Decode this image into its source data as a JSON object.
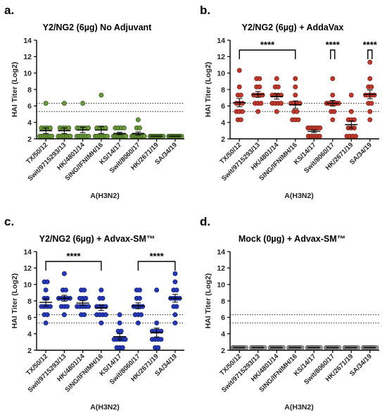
{
  "chart_data": [
    {
      "type": "scatter",
      "panel": "a.",
      "title": "Y2/NG2 (6µg) No Adjuvant",
      "xlabel": "A(H3N2)",
      "ylabel": "HAI Titer (Log2)",
      "ylim": [
        2,
        14
      ],
      "yticks": [
        2,
        4,
        6,
        8,
        10,
        12,
        14
      ],
      "reference_lines": [
        5.32,
        6.32
      ],
      "dot_color": "#6b9a3a",
      "dot_edge": "#2f4a17",
      "categories": [
        "TX/50/12",
        "Swit/9715293/13",
        "HK/4801/14",
        "SING/IFNIMH/16",
        "KS/14/17",
        "Swit/8060/17",
        "HK/2671/19",
        "SA/34/19"
      ],
      "series": [
        {
          "values": [
            [
              2.32,
              2.32,
              2.32,
              2.32,
              2.32,
              2.32,
              2.32,
              3.32,
              3.32,
              3.32,
              3.32,
              6.32
            ],
            [
              2.32,
              2.32,
              2.32,
              2.32,
              2.32,
              2.32,
              2.32,
              3.32,
              3.32,
              3.32,
              3.32,
              6.32
            ],
            [
              2.32,
              2.32,
              2.32,
              2.32,
              2.32,
              2.32,
              3.32,
              3.32,
              3.32,
              3.32,
              3.32,
              6.32
            ],
            [
              2.32,
              2.32,
              2.32,
              2.32,
              2.32,
              2.32,
              2.32,
              3.32,
              3.32,
              3.32,
              3.32,
              7.32
            ],
            [
              2.32,
              2.32,
              2.32,
              2.32,
              2.32,
              2.32,
              2.32,
              2.32,
              3.32,
              3.32,
              3.32,
              3.32
            ],
            [
              2.32,
              2.32,
              2.32,
              2.32,
              2.32,
              2.32,
              2.32,
              2.32,
              2.32,
              3.32,
              3.32,
              4.32
            ],
            [
              2.32,
              2.32,
              2.32,
              2.32,
              2.32,
              2.32,
              2.32,
              2.32,
              2.32,
              2.32,
              2.32,
              2.32
            ],
            [
              2.32,
              2.32,
              2.32,
              2.32,
              2.32,
              2.32,
              2.32,
              2.32,
              2.32,
              2.32,
              2.32,
              2.32
            ]
          ]
        }
      ],
      "significance": []
    },
    {
      "type": "scatter",
      "panel": "b.",
      "title": "Y2/NG2 (6µg) + AddaVax",
      "xlabel": "A(H3N2)",
      "ylabel": "HAI Titer (Log2)",
      "ylim": [
        2,
        14
      ],
      "yticks": [
        2,
        4,
        6,
        8,
        10,
        12,
        14
      ],
      "reference_lines": [
        5.32,
        6.32
      ],
      "dot_color": "#c0392b",
      "dot_edge": "#6e1a12",
      "categories": [
        "TX/50/12",
        "Swit/9715293/13",
        "HK/4801/14",
        "SING/IFNIMH/16",
        "KS/14/17",
        "Swit/8060/17",
        "HK/2671/19",
        "SA/34/19"
      ],
      "series": [
        {
          "values": [
            [
              4.32,
              4.32,
              5.32,
              5.32,
              5.32,
              6.32,
              6.32,
              6.32,
              7.32,
              7.32,
              8.32,
              10.32
            ],
            [
              5.32,
              6.32,
              6.32,
              6.32,
              7.32,
              7.32,
              7.32,
              7.32,
              8.32,
              8.32,
              9.32,
              9.32
            ],
            [
              5.32,
              6.32,
              6.32,
              6.32,
              6.32,
              7.32,
              7.32,
              7.32,
              7.32,
              8.32,
              8.32,
              9.32
            ],
            [
              4.32,
              4.32,
              4.32,
              5.32,
              5.32,
              6.32,
              6.32,
              6.32,
              6.32,
              7.32,
              8.32,
              9.32
            ],
            [
              2.32,
              2.32,
              2.32,
              2.32,
              2.32,
              3.32,
              3.32,
              3.32,
              3.32,
              3.32,
              3.32,
              3.32
            ],
            [
              4.32,
              5.32,
              5.32,
              6.32,
              6.32,
              6.32,
              6.32,
              6.32,
              6.32,
              6.32,
              7.32,
              9.32
            ],
            [
              2.32,
              2.32,
              2.32,
              2.32,
              3.32,
              3.32,
              3.32,
              4.32,
              4.32,
              4.32,
              5.32,
              7.32
            ],
            [
              4.32,
              5.32,
              6.32,
              6.32,
              7.32,
              7.32,
              7.32,
              7.32,
              8.32,
              8.32,
              9.32,
              11.32
            ]
          ]
        }
      ],
      "significance": [
        {
          "from": 0,
          "to": 3,
          "y": 12.8,
          "label": "****"
        },
        {
          "from": 5,
          "to": 5,
          "y": 12.8,
          "label": "****"
        },
        {
          "from": 7,
          "to": 7,
          "y": 12.8,
          "label": "****"
        }
      ]
    },
    {
      "type": "scatter",
      "panel": "c.",
      "title": "Y2/NG2 (6µg) + Advax-SM™",
      "xlabel": "A(H3N2)",
      "ylabel": "HAI Titer (Log2)",
      "ylim": [
        2,
        14
      ],
      "yticks": [
        2,
        4,
        6,
        8,
        10,
        12,
        14
      ],
      "reference_lines": [
        5.32,
        6.32
      ],
      "dot_color": "#2438b8",
      "dot_edge": "#101c66",
      "categories": [
        "TX/50/12",
        "Swit/9715293/13",
        "HK/4801/14",
        "SING/IFNIMH/16",
        "KS/14/17",
        "Swit/8060/17",
        "HK/2671/19",
        "SA/34/19"
      ],
      "series": [
        {
          "values": [
            [
              5.32,
              6.32,
              6.32,
              7.32,
              7.32,
              7.32,
              7.32,
              8.32,
              8.32,
              9.32,
              10.32,
              10.32
            ],
            [
              6.32,
              7.32,
              7.32,
              7.32,
              8.32,
              8.32,
              8.32,
              8.32,
              8.32,
              9.32,
              9.32,
              11.32
            ],
            [
              6.32,
              6.32,
              7.32,
              7.32,
              7.32,
              7.32,
              7.32,
              8.32,
              8.32,
              8.32,
              9.32,
              9.32
            ],
            [
              5.32,
              6.32,
              6.32,
              6.32,
              6.32,
              7.32,
              7.32,
              7.32,
              7.32,
              8.32,
              8.32,
              9.32
            ],
            [
              2.32,
              2.32,
              2.32,
              3.32,
              3.32,
              3.32,
              3.32,
              3.32,
              4.32,
              4.32,
              5.32,
              6.32
            ],
            [
              5.32,
              6.32,
              6.32,
              6.32,
              7.32,
              7.32,
              7.32,
              7.32,
              8.32,
              8.32,
              9.32,
              9.32
            ],
            [
              2.32,
              2.32,
              3.32,
              3.32,
              3.32,
              3.32,
              4.32,
              4.32,
              4.32,
              4.32,
              5.32,
              9.32
            ],
            [
              5.32,
              6.32,
              7.32,
              7.32,
              8.32,
              8.32,
              8.32,
              8.32,
              9.32,
              9.32,
              10.32,
              11.32
            ]
          ]
        }
      ],
      "significance": [
        {
          "from": 0,
          "to": 3,
          "y": 12.8,
          "label": "****"
        },
        {
          "from": 5,
          "to": 7,
          "y": 12.8,
          "label": "****"
        }
      ]
    },
    {
      "type": "scatter",
      "panel": "d.",
      "title": "Mock (0µg) + Advax-SM™",
      "xlabel": "A(H3N2)",
      "ylabel": "HAI Titer (Log2)",
      "ylim": [
        2,
        14
      ],
      "yticks": [
        2,
        4,
        6,
        8,
        10,
        12,
        14
      ],
      "reference_lines": [
        5.32,
        6.32
      ],
      "dot_color": "#9a9a9a",
      "dot_edge": "#555555",
      "categories": [
        "TX/50/12",
        "Swit/9715293/13",
        "HK/4801/14",
        "SING/IFNIMH/16",
        "KS/14/17",
        "Swit/8060/17",
        "HK/2671/19",
        "SA/34/19"
      ],
      "series": [
        {
          "values": [
            [
              2.32,
              2.32,
              2.32,
              2.32,
              2.32,
              2.32,
              2.32,
              2.32,
              2.32,
              2.32,
              2.32,
              2.32
            ],
            [
              2.32,
              2.32,
              2.32,
              2.32,
              2.32,
              2.32,
              2.32,
              2.32,
              2.32,
              2.32,
              2.32,
              2.32
            ],
            [
              2.32,
              2.32,
              2.32,
              2.32,
              2.32,
              2.32,
              2.32,
              2.32,
              2.32,
              2.32,
              2.32,
              2.32
            ],
            [
              2.32,
              2.32,
              2.32,
              2.32,
              2.32,
              2.32,
              2.32,
              2.32,
              2.32,
              2.32,
              2.32,
              2.32
            ],
            [
              2.32,
              2.32,
              2.32,
              2.32,
              2.32,
              2.32,
              2.32,
              2.32,
              2.32,
              2.32,
              2.32,
              2.32
            ],
            [
              2.32,
              2.32,
              2.32,
              2.32,
              2.32,
              2.32,
              2.32,
              2.32,
              2.32,
              2.32,
              2.32,
              2.32
            ],
            [
              2.32,
              2.32,
              2.32,
              2.32,
              2.32,
              2.32,
              2.32,
              2.32,
              2.32,
              2.32,
              2.32,
              2.32
            ],
            [
              2.32,
              2.32,
              2.32,
              2.32,
              2.32,
              2.32,
              2.32,
              2.32,
              2.32,
              2.32,
              2.32,
              2.32
            ]
          ]
        }
      ],
      "significance": []
    }
  ]
}
